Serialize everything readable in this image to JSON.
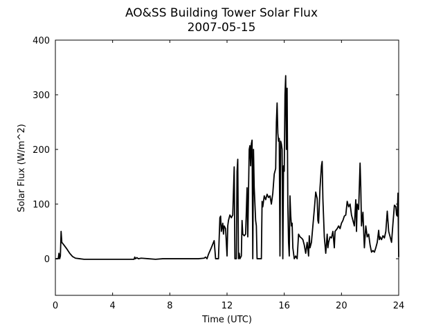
{
  "chart_data": {
    "type": "line",
    "title": "AO&SS Building Tower Solar Flux",
    "subtitle": "2007-05-15",
    "x_label": "Time (UTC)",
    "y_label": "Solar Flux (W/m^2)",
    "color": "#000000",
    "xlim": [
      0,
      24
    ],
    "xticks": [
      0,
      4,
      8,
      12,
      16,
      20,
      24
    ],
    "ylim": [
      -67,
      400
    ],
    "yticks": [
      0,
      100,
      200,
      300,
      400
    ],
    "x": [
      0,
      0.2,
      0.25,
      0.3,
      0.35,
      0.4,
      0.45,
      0.6,
      0.8,
      1.0,
      1.2,
      1.4,
      1.7,
      2,
      3,
      4,
      5,
      5.5,
      5.55,
      5.6,
      5.7,
      5.8,
      6,
      6.5,
      7,
      7.5,
      8,
      9,
      10,
      10.4,
      10.5,
      10.6,
      10.7,
      10.9,
      11.1,
      11.2,
      11.4,
      11.5,
      11.55,
      11.6,
      11.7,
      11.75,
      11.8,
      11.9,
      12.0,
      12.05,
      12.1,
      12.2,
      12.3,
      12.4,
      12.5,
      12.55,
      12.65,
      12.7,
      12.75,
      12.8,
      12.85,
      12.9,
      13.0,
      13.05,
      13.1,
      13.2,
      13.3,
      13.4,
      13.45,
      13.55,
      13.6,
      13.65,
      13.7,
      13.75,
      13.8,
      13.85,
      13.9,
      14.0,
      14.05,
      14.1,
      14.2,
      14.4,
      14.45,
      14.5,
      14.6,
      14.7,
      14.8,
      14.9,
      15.0,
      15.1,
      15.2,
      15.3,
      15.4,
      15.45,
      15.5,
      15.55,
      15.6,
      15.65,
      15.7,
      15.75,
      15.8,
      15.85,
      15.9,
      15.95,
      16.0,
      16.05,
      16.1,
      16.15,
      16.2,
      16.25,
      16.3,
      16.35,
      16.4,
      16.45,
      16.5,
      16.55,
      16.6,
      16.7,
      16.8,
      16.9,
      17.0,
      17.1,
      17.2,
      17.3,
      17.4,
      17.5,
      17.6,
      17.7,
      17.75,
      17.8,
      17.9,
      18.0,
      18.1,
      18.2,
      18.3,
      18.35,
      18.4,
      18.5,
      18.6,
      18.65,
      18.7,
      18.8,
      18.9,
      19.0,
      19.05,
      19.1,
      19.2,
      19.3,
      19.4,
      19.5,
      19.55,
      19.7,
      19.8,
      19.9,
      20.0,
      20.1,
      20.2,
      20.3,
      20.4,
      20.5,
      20.6,
      20.7,
      20.8,
      20.9,
      21.0,
      21.05,
      21.1,
      21.2,
      21.3,
      21.35,
      21.4,
      21.5,
      21.6,
      21.7,
      21.8,
      21.9,
      22.0,
      22.1,
      22.2,
      22.3,
      22.4,
      22.5,
      22.6,
      22.65,
      22.7,
      22.8,
      22.9,
      23.0,
      23.1,
      23.2,
      23.3,
      23.4,
      23.5,
      23.6,
      23.7,
      23.8,
      23.85,
      23.9,
      23.95,
      24.0
    ],
    "values": [
      0,
      0,
      10,
      0,
      5,
      50,
      30,
      25,
      18,
      10,
      4,
      1,
      0,
      -1,
      -1,
      -1,
      -1,
      -1,
      3,
      0,
      2,
      0,
      1,
      0,
      -1,
      0,
      0,
      0,
      0,
      1,
      3,
      0,
      8,
      20,
      33,
      0,
      0,
      75,
      78,
      50,
      65,
      45,
      60,
      55,
      5,
      60,
      70,
      80,
      75,
      80,
      168,
      0,
      0,
      160,
      182,
      0,
      10,
      0,
      5,
      70,
      45,
      42,
      45,
      130,
      40,
      200,
      207,
      170,
      210,
      217,
      0,
      200,
      130,
      70,
      60,
      0,
      0,
      0,
      105,
      95,
      115,
      108,
      118,
      112,
      115,
      100,
      120,
      155,
      165,
      250,
      285,
      230,
      215,
      220,
      5,
      215,
      210,
      200,
      0,
      170,
      160,
      300,
      335,
      200,
      312,
      100,
      30,
      5,
      115,
      80,
      60,
      65,
      20,
      0,
      5,
      0,
      45,
      40,
      38,
      35,
      25,
      10,
      30,
      5,
      42,
      20,
      30,
      60,
      90,
      122,
      110,
      70,
      65,
      130,
      170,
      178,
      110,
      40,
      10,
      45,
      20,
      30,
      40,
      38,
      50,
      20,
      50,
      55,
      60,
      55,
      65,
      70,
      78,
      80,
      105,
      95,
      100,
      80,
      70,
      60,
      108,
      50,
      100,
      90,
      175,
      130,
      60,
      85,
      20,
      60,
      40,
      45,
      25,
      12,
      15,
      12,
      20,
      30,
      52,
      35,
      40,
      35,
      42,
      38,
      50,
      87,
      50,
      40,
      30,
      65,
      98,
      95,
      80,
      78,
      120,
      3
    ]
  }
}
